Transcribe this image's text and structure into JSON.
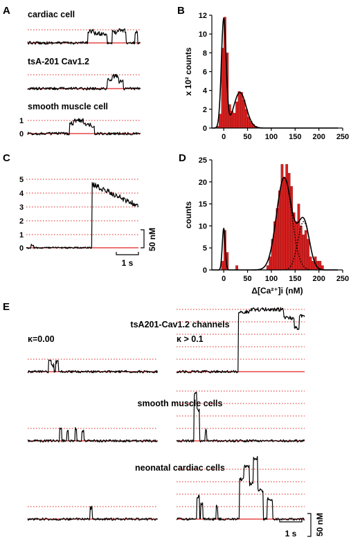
{
  "panels": {
    "A": "A",
    "B": "B",
    "C": "C",
    "D": "D",
    "E": "E"
  },
  "panelA": {
    "trace_labels": [
      "cardiac cell",
      "tsA-201 Cav1.2",
      "smooth muscle cell"
    ],
    "level_labels": [
      "1",
      "0"
    ]
  },
  "panelC": {
    "level_labels": [
      "5",
      "4",
      "3",
      "2",
      "1",
      "0"
    ],
    "scalebar_y": "50 nM",
    "scalebar_x": "1 s"
  },
  "panelE": {
    "group_labels": [
      "tsA201-Cav1.2 channels",
      "smooth muscle cells",
      "neonatal cardiac cells"
    ],
    "kappa_labels": [
      "κ=0.00",
      "κ > 0.1"
    ],
    "scalebar_y": "50 nM",
    "scalebar_x": "1 s"
  },
  "chart_data": [
    {
      "type": "bar",
      "panel": "B",
      "ylabel": "x 10² counts",
      "xlim": [
        -25,
        250
      ],
      "ylim": [
        0,
        12
      ],
      "xticks": [
        0,
        50,
        100,
        150,
        200,
        250
      ],
      "yticks": [
        0,
        2,
        4,
        6,
        8,
        10,
        12
      ],
      "bin_width": 5,
      "bins": [
        -15,
        -10,
        -5,
        0,
        5,
        10,
        15,
        20,
        25,
        30,
        35,
        40,
        45,
        50,
        55,
        60,
        65,
        70,
        75
      ],
      "values": [
        0.2,
        1.5,
        8.5,
        11.8,
        8.0,
        2.5,
        1.8,
        1.6,
        2.8,
        3.9,
        3.8,
        3.0,
        2.0,
        1.2,
        0.7,
        0.4,
        0.2,
        0.1,
        0.05
      ],
      "fit": "sum of two Gaussians"
    },
    {
      "type": "bar",
      "panel": "D",
      "ylabel": "counts",
      "xlabel": "Δ[Ca²⁺]i (nM)",
      "xlim": [
        -25,
        250
      ],
      "ylim": [
        0,
        25
      ],
      "xticks": [
        0,
        50,
        100,
        150,
        200,
        250
      ],
      "yticks": [
        0,
        5,
        10,
        15,
        20,
        25
      ],
      "bin_width": 5,
      "bins": [
        -5,
        0,
        5,
        25,
        90,
        95,
        100,
        105,
        110,
        115,
        120,
        125,
        130,
        135,
        140,
        145,
        150,
        155,
        160,
        165,
        170,
        175,
        180,
        185,
        190,
        195,
        200,
        205
      ],
      "values": [
        2,
        9,
        4,
        1,
        1,
        3,
        7,
        11,
        14,
        18,
        24,
        21,
        24,
        22,
        19,
        13,
        11,
        15,
        10,
        8,
        9,
        7,
        3,
        2,
        3,
        2,
        2,
        1
      ],
      "fit": "sum of Gaussians with individual components dotted"
    }
  ]
}
